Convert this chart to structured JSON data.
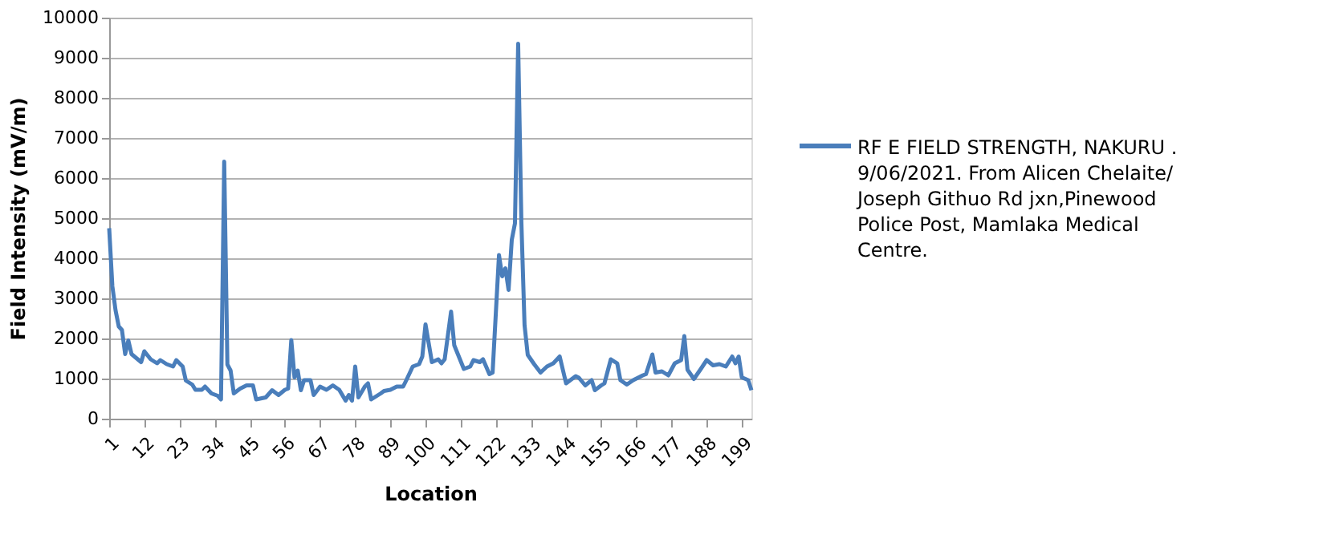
{
  "chart_data": {
    "type": "line",
    "xlabel": "Location",
    "ylabel": "Field Intensity (mV/m)",
    "xlim": [
      1,
      202
    ],
    "xticks": [
      1,
      12,
      23,
      34,
      45,
      56,
      67,
      78,
      89,
      100,
      111,
      122,
      133,
      144,
      155,
      166,
      177,
      188,
      199
    ],
    "ylim": [
      0,
      10000
    ],
    "yticks": [
      0,
      1000,
      2000,
      3000,
      4000,
      5000,
      6000,
      7000,
      8000,
      9000,
      10000
    ],
    "grid": "y",
    "legend": "right",
    "line_style": "solid",
    "marker": "none",
    "series": [
      {
        "name": "RF  E FIELD STRENGTH, NAKURU . 9/06/2021. From Alicen Chelaite/ Joseph Githuo Rd jxn,Pinewood Police Post, Mamlaka Medical Centre.",
        "color": "#4a7ebb",
        "x": [
          1,
          2,
          3,
          4,
          5,
          6,
          7,
          8,
          11,
          12,
          14,
          16,
          17,
          19,
          21,
          22,
          24,
          25,
          27,
          28,
          30,
          31,
          33,
          35,
          36,
          37,
          38,
          39,
          40,
          42,
          44,
          46,
          47,
          50,
          52,
          54,
          56,
          57,
          58,
          59,
          60,
          61,
          62,
          64,
          65,
          67,
          69,
          71,
          73,
          75,
          76,
          77,
          78,
          79,
          81,
          82,
          83,
          86,
          87,
          89,
          91,
          93,
          94,
          96,
          98,
          99,
          100,
          102,
          104,
          105,
          106,
          108,
          109,
          112,
          114,
          115,
          117,
          118,
          120,
          121,
          123,
          124,
          125,
          126,
          127,
          128,
          129,
          130,
          131,
          132,
          134,
          136,
          138,
          140,
          142,
          144,
          147,
          148,
          150,
          152,
          153,
          155,
          156,
          158,
          160,
          161,
          163,
          165,
          168,
          169,
          171,
          172,
          174,
          176,
          178,
          180,
          181,
          182,
          184,
          186,
          188,
          190,
          192,
          194,
          196,
          197,
          198,
          199,
          201,
          202
        ],
        "values": [
          4750,
          3300,
          2700,
          2300,
          2210,
          1610,
          1950,
          1610,
          1410,
          1680,
          1480,
          1380,
          1460,
          1360,
          1300,
          1460,
          1300,
          950,
          850,
          720,
          720,
          800,
          630,
          570,
          480,
          6410,
          1350,
          1200,
          630,
          750,
          830,
          830,
          480,
          530,
          710,
          590,
          720,
          750,
          1960,
          1030,
          1200,
          710,
          960,
          960,
          590,
          800,
          720,
          830,
          720,
          450,
          590,
          450,
          1300,
          530,
          800,
          880,
          480,
          630,
          690,
          720,
          800,
          800,
          960,
          1300,
          1360,
          1550,
          2350,
          1410,
          1480,
          1380,
          1480,
          2670,
          1830,
          1240,
          1300,
          1460,
          1410,
          1480,
          1110,
          1150,
          4080,
          3550,
          3750,
          3210,
          4460,
          4870,
          9350,
          4920,
          2330,
          1590,
          1360,
          1150,
          1300,
          1380,
          1550,
          880,
          1060,
          1020,
          830,
          960,
          710,
          830,
          880,
          1480,
          1380,
          960,
          850,
          960,
          1080,
          1110,
          1600,
          1150,
          1180,
          1080,
          1380,
          1460,
          2060,
          1220,
          990,
          1220,
          1460,
          1330,
          1360,
          1300,
          1550,
          1380,
          1550,
          1030,
          960,
          710
        ]
      }
    ]
  }
}
